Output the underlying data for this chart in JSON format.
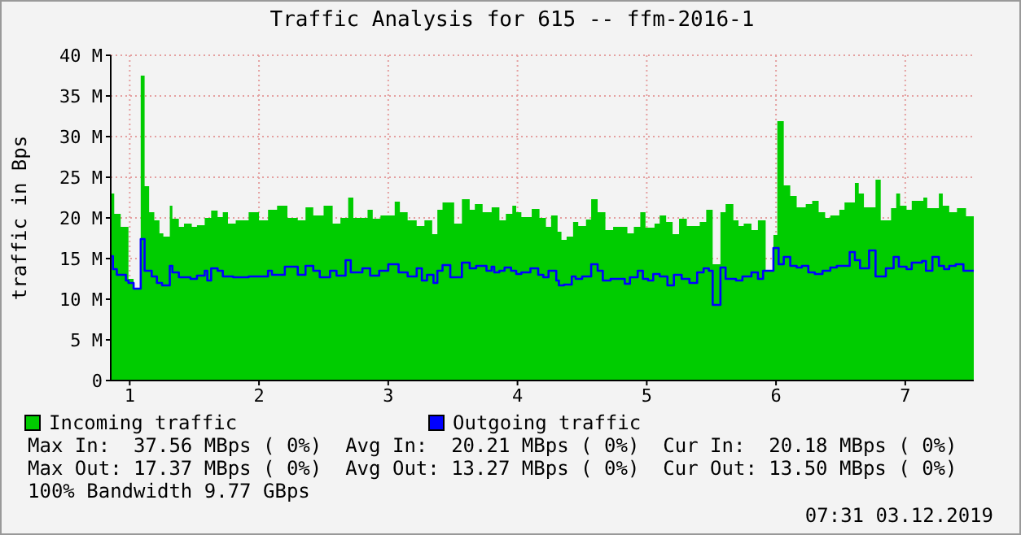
{
  "chart_data": {
    "type": "area",
    "title": "Traffic Analysis for 615 -- ffm-2016-1",
    "ylabel": "traffic in Bps",
    "xlim": [
      0.853,
      7.53
    ],
    "xticks": [
      1,
      2,
      3,
      4,
      5,
      6,
      7
    ],
    "ylim": [
      0,
      40
    ],
    "yticks": [
      0,
      {
        "value": 5,
        "label": "5 M"
      },
      {
        "value": 10,
        "label": "10 M"
      },
      {
        "value": 15,
        "label": "15 M"
      },
      {
        "value": 20,
        "label": "20 M"
      },
      {
        "value": 25,
        "label": "25 M"
      },
      {
        "value": 30,
        "label": "30 M"
      },
      {
        "value": 35,
        "label": "35 M"
      },
      {
        "value": 40,
        "label": "40 M"
      }
    ],
    "grid": true,
    "legend": "bottom",
    "series": [
      {
        "name": "Incoming traffic",
        "color": "#00cc00",
        "x": [
          0.853,
          0.88,
          0.93,
          0.99,
          1.03,
          1.085,
          1.115,
          1.15,
          1.19,
          1.23,
          1.26,
          1.31,
          1.33,
          1.38,
          1.42,
          1.48,
          1.52,
          1.58,
          1.63,
          1.68,
          1.72,
          1.76,
          1.82,
          1.92,
          2.0,
          2.07,
          2.14,
          2.22,
          2.3,
          2.36,
          2.42,
          2.5,
          2.57,
          2.63,
          2.69,
          2.73,
          2.84,
          2.88,
          2.94,
          3.05,
          3.09,
          3.15,
          3.22,
          3.28,
          3.34,
          3.38,
          3.42,
          3.51,
          3.57,
          3.63,
          3.67,
          3.73,
          3.8,
          3.86,
          3.91,
          3.96,
          3.99,
          4.03,
          4.11,
          4.17,
          4.22,
          4.26,
          4.31,
          4.34,
          4.38,
          4.43,
          4.47,
          4.53,
          4.57,
          4.62,
          4.68,
          4.74,
          4.85,
          4.9,
          4.95,
          4.99,
          5.06,
          5.1,
          5.15,
          5.2,
          5.25,
          5.31,
          5.41,
          5.46,
          5.51,
          5.57,
          5.61,
          5.67,
          5.71,
          5.75,
          5.81,
          5.86,
          5.92,
          5.98,
          6.01,
          6.06,
          6.11,
          6.16,
          6.23,
          6.28,
          6.33,
          6.38,
          6.42,
          6.49,
          6.53,
          6.61,
          6.64,
          6.68,
          6.77,
          6.81,
          6.89,
          6.93,
          6.96,
          7.01,
          7.05,
          7.14,
          7.17,
          7.26,
          7.29,
          7.34,
          7.4,
          7.47,
          7.53
        ],
        "values": [
          23.0,
          20.5,
          18.9,
          12.5,
          11.3,
          37.5,
          23.9,
          20.7,
          19.7,
          18.1,
          17.7,
          21.5,
          19.9,
          18.9,
          19.3,
          18.9,
          19.1,
          20.0,
          20.9,
          20.1,
          20.7,
          19.3,
          19.7,
          20.7,
          19.7,
          21.0,
          21.5,
          20.0,
          19.7,
          21.3,
          20.3,
          21.5,
          19.3,
          20.0,
          22.5,
          20.0,
          21.0,
          19.9,
          20.3,
          22.0,
          20.7,
          19.7,
          19.0,
          19.7,
          18.0,
          21.0,
          21.9,
          19.3,
          22.3,
          21.0,
          21.7,
          20.7,
          21.3,
          19.7,
          20.5,
          21.5,
          20.7,
          20.1,
          21.1,
          20.0,
          18.9,
          20.3,
          18.3,
          17.3,
          17.7,
          19.5,
          19.0,
          19.8,
          22.3,
          20.7,
          18.5,
          18.9,
          18.1,
          18.9,
          20.7,
          18.8,
          19.3,
          20.3,
          19.5,
          18.0,
          19.9,
          19.0,
          19.5,
          21.0,
          14.3,
          20.7,
          21.7,
          19.7,
          19.0,
          19.3,
          18.5,
          19.7,
          13.5,
          17.9,
          31.9,
          24.0,
          22.7,
          21.3,
          21.7,
          22.1,
          20.7,
          20.0,
          20.3,
          21.0,
          21.9,
          24.3,
          23.0,
          21.3,
          24.7,
          19.7,
          21.2,
          23.0,
          21.5,
          21.0,
          22.1,
          22.5,
          21.2,
          23.0,
          21.5,
          20.7,
          21.2,
          20.2,
          20.2
        ]
      },
      {
        "name": "Outgoing traffic",
        "type": "step",
        "color": "#0000ff",
        "x": [
          0.853,
          0.87,
          0.9,
          0.97,
          0.99,
          1.03,
          1.085,
          1.115,
          1.17,
          1.21,
          1.25,
          1.31,
          1.33,
          1.38,
          1.47,
          1.52,
          1.58,
          1.6,
          1.63,
          1.68,
          1.72,
          1.8,
          1.92,
          2.07,
          2.1,
          2.2,
          2.3,
          2.36,
          2.42,
          2.47,
          2.55,
          2.6,
          2.67,
          2.71,
          2.8,
          2.86,
          2.93,
          3.0,
          3.08,
          3.15,
          3.22,
          3.26,
          3.3,
          3.35,
          3.38,
          3.42,
          3.48,
          3.57,
          3.63,
          3.68,
          3.76,
          3.8,
          3.82,
          3.86,
          3.9,
          3.95,
          3.99,
          4.03,
          4.1,
          4.16,
          4.2,
          4.24,
          4.3,
          4.32,
          4.36,
          4.42,
          4.45,
          4.5,
          4.57,
          4.62,
          4.66,
          4.72,
          4.83,
          4.87,
          4.93,
          4.97,
          5.01,
          5.05,
          5.1,
          5.16,
          5.21,
          5.27,
          5.33,
          5.39,
          5.44,
          5.48,
          5.51,
          5.57,
          5.61,
          5.69,
          5.74,
          5.81,
          5.86,
          5.9,
          5.98,
          6.02,
          6.06,
          6.11,
          6.16,
          6.2,
          6.25,
          6.3,
          6.36,
          6.42,
          6.47,
          6.57,
          6.61,
          6.65,
          6.72,
          6.77,
          6.85,
          6.91,
          6.95,
          7.01,
          7.05,
          7.13,
          7.16,
          7.21,
          7.26,
          7.3,
          7.34,
          7.39,
          7.45,
          7.53
        ],
        "values": [
          15.3,
          13.7,
          13.0,
          12.3,
          12.0,
          11.3,
          17.4,
          13.5,
          12.8,
          12.0,
          11.7,
          14.1,
          13.3,
          12.7,
          12.5,
          12.9,
          13.5,
          12.3,
          13.8,
          13.5,
          12.8,
          12.7,
          12.8,
          13.5,
          13.0,
          14.0,
          13.0,
          14.1,
          13.5,
          12.7,
          13.5,
          12.9,
          14.8,
          13.3,
          13.8,
          12.9,
          13.5,
          14.3,
          13.3,
          12.8,
          13.8,
          12.3,
          13.0,
          12.0,
          13.5,
          14.2,
          12.7,
          14.5,
          13.8,
          14.1,
          13.5,
          14.0,
          13.3,
          13.5,
          13.9,
          13.5,
          13.1,
          13.3,
          13.8,
          13.0,
          12.7,
          13.5,
          12.3,
          11.7,
          11.8,
          12.8,
          12.5,
          12.8,
          14.3,
          13.5,
          12.3,
          12.5,
          11.9,
          12.7,
          13.5,
          12.5,
          12.3,
          13.1,
          12.8,
          11.7,
          13.0,
          12.5,
          12.0,
          13.3,
          13.8,
          13.5,
          9.3,
          13.9,
          12.5,
          12.3,
          12.8,
          13.3,
          12.5,
          13.5,
          16.3,
          14.3,
          15.2,
          14.1,
          13.9,
          14.1,
          13.3,
          13.1,
          13.5,
          13.9,
          14.1,
          15.8,
          14.8,
          13.8,
          16.0,
          12.8,
          13.8,
          15.2,
          14.0,
          13.7,
          14.5,
          14.7,
          13.5,
          15.2,
          14.1,
          13.7,
          14.1,
          14.3,
          13.5,
          13.5
        ]
      }
    ],
    "annotations": [
      "Max In:  37.56 MBps ( 0%)  Avg In:  20.21 MBps ( 0%)  Cur In:  20.18 MBps ( 0%)",
      "Max Out: 17.37 MBps ( 0%)  Avg Out: 13.27 MBps ( 0%)  Cur Out: 13.50 MBps ( 0%)",
      "100% Bandwidth 9.77 GBps",
      "07:31 03.12.2019"
    ]
  }
}
